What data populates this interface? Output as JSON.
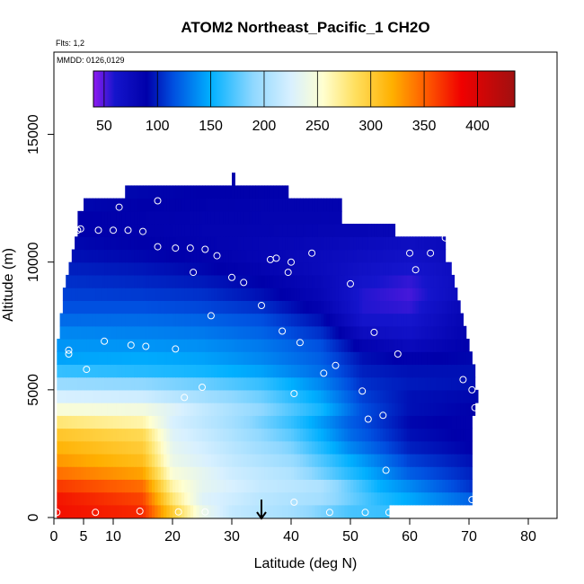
{
  "chart_data": {
    "type": "heatmap",
    "title": "ATOM2 Northeast_Pacific_1 CH2O",
    "flights_label": "Flts: 1,2",
    "dates_label": "MMDD: 0126,0129",
    "xlabel": "Latitude (deg N)",
    "ylabel": "Altitude (m)",
    "xlim": [
      0,
      85
    ],
    "ylim": [
      0,
      17500
    ],
    "x_ticks": [
      0,
      5,
      10,
      20,
      30,
      40,
      50,
      60,
      70,
      80
    ],
    "y_ticks": [
      0,
      5000,
      10000,
      15000
    ],
    "colorbar": {
      "min": 40,
      "max": 435,
      "ticks": [
        50,
        100,
        150,
        200,
        250,
        300,
        350,
        400
      ],
      "stops": [
        {
          "v": 40,
          "c": "#8f1cf0"
        },
        {
          "v": 60,
          "c": "#1515cc"
        },
        {
          "v": 90,
          "c": "#0000aa"
        },
        {
          "v": 115,
          "c": "#0050e0"
        },
        {
          "v": 150,
          "c": "#00b0ff"
        },
        {
          "v": 190,
          "c": "#90d8ff"
        },
        {
          "v": 225,
          "c": "#d8f0ff"
        },
        {
          "v": 255,
          "c": "#ffffd0"
        },
        {
          "v": 285,
          "c": "#ffe060"
        },
        {
          "v": 320,
          "c": "#ffb000"
        },
        {
          "v": 350,
          "c": "#ff6000"
        },
        {
          "v": 385,
          "c": "#f00000"
        },
        {
          "v": 435,
          "c": "#a01010"
        }
      ]
    },
    "altitude_levels": [
      {
        "alt": 0,
        "lat_min": 0.5,
        "lat_max": 56.5,
        "values": [
          [
            0,
            380
          ],
          [
            15,
            370
          ],
          [
            20,
            300
          ],
          [
            25,
            240
          ],
          [
            30,
            215
          ],
          [
            40,
            200
          ],
          [
            50,
            170
          ],
          [
            56.5,
            165
          ]
        ]
      },
      {
        "alt": 500,
        "lat_min": 0.5,
        "lat_max": 70.5,
        "values": [
          [
            0,
            378
          ],
          [
            15,
            360
          ],
          [
            20,
            280
          ],
          [
            25,
            230
          ],
          [
            35,
            210
          ],
          [
            45,
            200
          ],
          [
            55,
            160
          ],
          [
            70.5,
            120
          ]
        ]
      },
      {
        "alt": 1000,
        "lat_min": 0.5,
        "lat_max": 70.5,
        "values": [
          [
            0,
            365
          ],
          [
            15,
            345
          ],
          [
            20,
            265
          ],
          [
            25,
            235
          ],
          [
            35,
            215
          ],
          [
            45,
            205
          ],
          [
            55,
            150
          ],
          [
            70.5,
            105
          ]
        ]
      },
      {
        "alt": 1500,
        "lat_min": 0.5,
        "lat_max": 70.5,
        "values": [
          [
            0,
            345
          ],
          [
            15,
            325
          ],
          [
            20,
            250
          ],
          [
            30,
            220
          ],
          [
            40,
            205
          ],
          [
            50,
            160
          ],
          [
            60,
            120
          ],
          [
            70.5,
            100
          ]
        ]
      },
      {
        "alt": 2000,
        "lat_min": 0.5,
        "lat_max": 70.5,
        "values": [
          [
            0,
            330
          ],
          [
            15,
            310
          ],
          [
            20,
            240
          ],
          [
            30,
            215
          ],
          [
            40,
            195
          ],
          [
            50,
            150
          ],
          [
            60,
            110
          ],
          [
            70.5,
            95
          ]
        ]
      },
      {
        "alt": 2500,
        "lat_min": 0.5,
        "lat_max": 70.5,
        "values": [
          [
            0,
            318
          ],
          [
            15,
            300
          ],
          [
            20,
            235
          ],
          [
            30,
            210
          ],
          [
            40,
            185
          ],
          [
            50,
            135
          ],
          [
            60,
            100
          ],
          [
            70.5,
            90
          ]
        ]
      },
      {
        "alt": 3000,
        "lat_min": 0.5,
        "lat_max": 70.5,
        "values": [
          [
            0,
            305
          ],
          [
            15,
            290
          ],
          [
            20,
            230
          ],
          [
            30,
            205
          ],
          [
            40,
            175
          ],
          [
            50,
            125
          ],
          [
            60,
            95
          ],
          [
            70.5,
            88
          ]
        ]
      },
      {
        "alt": 3500,
        "lat_min": 0.5,
        "lat_max": 70.5,
        "values": [
          [
            0,
            280
          ],
          [
            15,
            265
          ],
          [
            20,
            225
          ],
          [
            30,
            200
          ],
          [
            40,
            165
          ],
          [
            50,
            120
          ],
          [
            60,
            92
          ],
          [
            70.5,
            88
          ]
        ]
      },
      {
        "alt": 4000,
        "lat_min": 0.5,
        "lat_max": 71,
        "values": [
          [
            0,
            250
          ],
          [
            15,
            245
          ],
          [
            25,
            215
          ],
          [
            35,
            190
          ],
          [
            45,
            155
          ],
          [
            52,
            115
          ],
          [
            60,
            95
          ],
          [
            71,
            90
          ]
        ]
      },
      {
        "alt": 4500,
        "lat_min": 0.5,
        "lat_max": 71.5,
        "values": [
          [
            0,
            225
          ],
          [
            15,
            220
          ],
          [
            25,
            200
          ],
          [
            35,
            180
          ],
          [
            45,
            145
          ],
          [
            52,
            110
          ],
          [
            60,
            95
          ],
          [
            71.5,
            92
          ]
        ]
      },
      {
        "alt": 5000,
        "lat_min": 0.5,
        "lat_max": 71,
        "values": [
          [
            0,
            195
          ],
          [
            15,
            190
          ],
          [
            25,
            180
          ],
          [
            35,
            165
          ],
          [
            45,
            135
          ],
          [
            52,
            105
          ],
          [
            60,
            98
          ],
          [
            71,
            95
          ]
        ]
      },
      {
        "alt": 5500,
        "lat_min": 0.5,
        "lat_max": 71,
        "values": [
          [
            0,
            165
          ],
          [
            15,
            160
          ],
          [
            25,
            155
          ],
          [
            35,
            145
          ],
          [
            45,
            125
          ],
          [
            52,
            100
          ],
          [
            60,
            95
          ],
          [
            71,
            95
          ]
        ]
      },
      {
        "alt": 6000,
        "lat_min": 0.5,
        "lat_max": 70.5,
        "values": [
          [
            0,
            145
          ],
          [
            15,
            148
          ],
          [
            25,
            145
          ],
          [
            35,
            135
          ],
          [
            45,
            120
          ],
          [
            52,
            95
          ],
          [
            60,
            88
          ],
          [
            70.5,
            92
          ]
        ]
      },
      {
        "alt": 6500,
        "lat_min": 0.5,
        "lat_max": 70,
        "values": [
          [
            0,
            140
          ],
          [
            15,
            140
          ],
          [
            25,
            138
          ],
          [
            35,
            130
          ],
          [
            45,
            115
          ],
          [
            52,
            85
          ],
          [
            60,
            75
          ],
          [
            70,
            88
          ]
        ]
      },
      {
        "alt": 7000,
        "lat_min": 1,
        "lat_max": 69.5,
        "values": [
          [
            1,
            135
          ],
          [
            15,
            133
          ],
          [
            25,
            130
          ],
          [
            35,
            122
          ],
          [
            45,
            105
          ],
          [
            52,
            72
          ],
          [
            60,
            65
          ],
          [
            69.5,
            85
          ]
        ]
      },
      {
        "alt": 7500,
        "lat_min": 1,
        "lat_max": 69,
        "values": [
          [
            1,
            125
          ],
          [
            15,
            125
          ],
          [
            25,
            122
          ],
          [
            35,
            115
          ],
          [
            45,
            95
          ],
          [
            52,
            62
          ],
          [
            60,
            60
          ],
          [
            69,
            82
          ]
        ]
      },
      {
        "alt": 8000,
        "lat_min": 1.5,
        "lat_max": 68.5,
        "values": [
          [
            1.5,
            115
          ],
          [
            15,
            115
          ],
          [
            25,
            112
          ],
          [
            35,
            105
          ],
          [
            45,
            85
          ],
          [
            52,
            58
          ],
          [
            60,
            55
          ],
          [
            68.5,
            78
          ]
        ]
      },
      {
        "alt": 8500,
        "lat_min": 1.5,
        "lat_max": 68,
        "values": [
          [
            1.5,
            110
          ],
          [
            15,
            108
          ],
          [
            25,
            105
          ],
          [
            35,
            95
          ],
          [
            45,
            80
          ],
          [
            52,
            58
          ],
          [
            60,
            52
          ],
          [
            68,
            72
          ]
        ]
      },
      {
        "alt": 9000,
        "lat_min": 2,
        "lat_max": 67.5,
        "values": [
          [
            2,
            105
          ],
          [
            15,
            102
          ],
          [
            25,
            98
          ],
          [
            35,
            90
          ],
          [
            45,
            78
          ],
          [
            52,
            62
          ],
          [
            60,
            55
          ],
          [
            67.5,
            70
          ]
        ]
      },
      {
        "alt": 9500,
        "lat_min": 2.5,
        "lat_max": 67,
        "values": [
          [
            2.5,
            100
          ],
          [
            15,
            97
          ],
          [
            25,
            92
          ],
          [
            35,
            85
          ],
          [
            45,
            75
          ],
          [
            52,
            66
          ],
          [
            60,
            60
          ],
          [
            67,
            70
          ]
        ]
      },
      {
        "alt": 10000,
        "lat_min": 3,
        "lat_max": 66,
        "values": [
          [
            3,
            95
          ],
          [
            15,
            92
          ],
          [
            25,
            88
          ],
          [
            35,
            82
          ],
          [
            45,
            75
          ],
          [
            52,
            70
          ],
          [
            60,
            65
          ],
          [
            66,
            72
          ]
        ]
      },
      {
        "alt": 10500,
        "lat_min": 3.5,
        "lat_max": 66,
        "values": [
          [
            3.5,
            92
          ],
          [
            15,
            90
          ],
          [
            25,
            86
          ],
          [
            35,
            82
          ],
          [
            45,
            78
          ],
          [
            52,
            74
          ],
          [
            60,
            70
          ],
          [
            66,
            75
          ]
        ]
      },
      {
        "alt": 11000,
        "lat_min": 4,
        "lat_max": 57.5,
        "values": [
          [
            4,
            90
          ],
          [
            15,
            88
          ],
          [
            25,
            85
          ],
          [
            35,
            84
          ],
          [
            45,
            82
          ],
          [
            57.5,
            80
          ]
        ]
      },
      {
        "alt": 11500,
        "lat_min": 4,
        "lat_max": 48.5,
        "values": [
          [
            4,
            90
          ],
          [
            15,
            88
          ],
          [
            25,
            86
          ],
          [
            35,
            85
          ],
          [
            48.5,
            84
          ]
        ]
      },
      {
        "alt": 12000,
        "lat_min": 5,
        "lat_max": 48.5,
        "values": [
          [
            5,
            92
          ],
          [
            15,
            90
          ],
          [
            25,
            88
          ],
          [
            35,
            86
          ],
          [
            48.5,
            86
          ]
        ]
      },
      {
        "alt": 12500,
        "lat_min": 12,
        "lat_max": 39.5,
        "values": [
          [
            12,
            92
          ],
          [
            25,
            90
          ],
          [
            39.5,
            88
          ]
        ]
      },
      {
        "alt": 13000,
        "lat_min": 30,
        "lat_max": 30.5,
        "values": [
          [
            30,
            90
          ],
          [
            30.5,
            90
          ]
        ]
      }
    ],
    "observations": [
      {
        "lat": 0.5,
        "alt": 200
      },
      {
        "lat": 7,
        "alt": 200
      },
      {
        "lat": 14.5,
        "alt": 250
      },
      {
        "lat": 21,
        "alt": 220
      },
      {
        "lat": 25.5,
        "alt": 220
      },
      {
        "lat": 40.5,
        "alt": 600
      },
      {
        "lat": 46.5,
        "alt": 200
      },
      {
        "lat": 52.5,
        "alt": 200
      },
      {
        "lat": 56.5,
        "alt": 200
      },
      {
        "lat": 70.5,
        "alt": 700
      },
      {
        "lat": 56,
        "alt": 1850
      },
      {
        "lat": 53,
        "alt": 3850
      },
      {
        "lat": 55.5,
        "alt": 4000
      },
      {
        "lat": 71,
        "alt": 4300
      },
      {
        "lat": 22,
        "alt": 4700
      },
      {
        "lat": 25,
        "alt": 5100
      },
      {
        "lat": 40.5,
        "alt": 4850
      },
      {
        "lat": 52,
        "alt": 4950
      },
      {
        "lat": 70.5,
        "alt": 5000
      },
      {
        "lat": 69,
        "alt": 5400
      },
      {
        "lat": 45.5,
        "alt": 5650
      },
      {
        "lat": 47.5,
        "alt": 5950
      },
      {
        "lat": 2.5,
        "alt": 6400
      },
      {
        "lat": 2.5,
        "alt": 6550
      },
      {
        "lat": 5.5,
        "alt": 5800
      },
      {
        "lat": 8.5,
        "alt": 6900
      },
      {
        "lat": 13,
        "alt": 6750
      },
      {
        "lat": 15.5,
        "alt": 6700
      },
      {
        "lat": 20.5,
        "alt": 6600
      },
      {
        "lat": 41.5,
        "alt": 6850
      },
      {
        "lat": 58,
        "alt": 6400
      },
      {
        "lat": 38.5,
        "alt": 7300
      },
      {
        "lat": 54,
        "alt": 7250
      },
      {
        "lat": 26.5,
        "alt": 7900
      },
      {
        "lat": 35,
        "alt": 8300
      },
      {
        "lat": 30,
        "alt": 9400
      },
      {
        "lat": 32,
        "alt": 9200
      },
      {
        "lat": 50,
        "alt": 9150
      },
      {
        "lat": 23.5,
        "alt": 9600
      },
      {
        "lat": 39.5,
        "alt": 9600
      },
      {
        "lat": 36.5,
        "alt": 10100
      },
      {
        "lat": 37.5,
        "alt": 10150
      },
      {
        "lat": 40,
        "alt": 10000
      },
      {
        "lat": 43.5,
        "alt": 10350
      },
      {
        "lat": 61,
        "alt": 9700
      },
      {
        "lat": 17.5,
        "alt": 10600
      },
      {
        "lat": 20.5,
        "alt": 10550
      },
      {
        "lat": 23,
        "alt": 10550
      },
      {
        "lat": 25.5,
        "alt": 10500
      },
      {
        "lat": 27.5,
        "alt": 10250
      },
      {
        "lat": 60,
        "alt": 10350
      },
      {
        "lat": 63.5,
        "alt": 10350
      },
      {
        "lat": 66,
        "alt": 10950
      },
      {
        "lat": 4,
        "alt": 11250
      },
      {
        "lat": 4.5,
        "alt": 11300
      },
      {
        "lat": 7.5,
        "alt": 11250
      },
      {
        "lat": 10,
        "alt": 11250
      },
      {
        "lat": 12.5,
        "alt": 11250
      },
      {
        "lat": 15,
        "alt": 11200
      },
      {
        "lat": 11,
        "alt": 12150
      },
      {
        "lat": 17.5,
        "alt": 12400
      }
    ],
    "marker": {
      "lat": 35,
      "label": "arrow"
    }
  }
}
